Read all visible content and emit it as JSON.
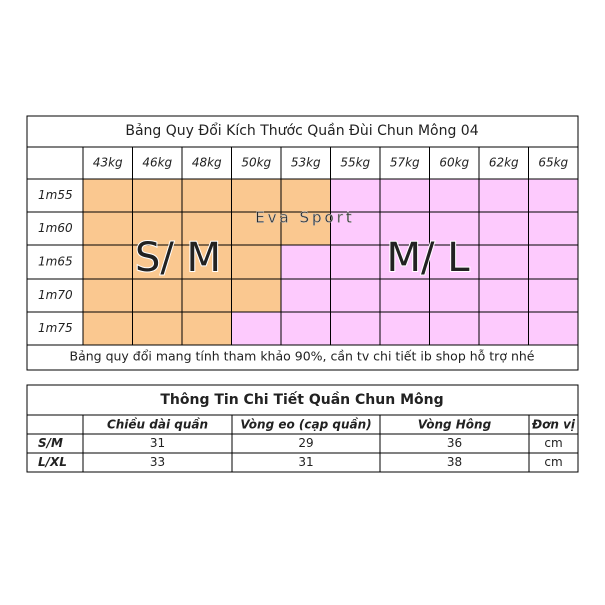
{
  "size_table": {
    "title": "Bảng Quy Đổi Kích Thước Quần Đùi Chun Mông 04",
    "weights": [
      "43kg",
      "46kg",
      "48kg",
      "50kg",
      "53kg",
      "55kg",
      "57kg",
      "60kg",
      "62kg",
      "65kg"
    ],
    "heights": [
      "1m55",
      "1m60",
      "1m65",
      "1m70",
      "1m75"
    ],
    "watermark": "Eva Sport",
    "zone_labels": [
      "S/ M",
      "M/ L"
    ],
    "note": "Bảng quy đổi mang tính tham khảo 90%, cần tv chi tiết ib shop hỗ trợ nhé"
  },
  "detail_table": {
    "title": "Thông Tin Chi Tiết Quần Chun Mông",
    "headers": [
      "Chiều dài quần",
      "Vòng eo (cạp quần)",
      "Vòng Hông",
      "Đơn vị"
    ],
    "rows": [
      [
        "S/M",
        "31",
        "29",
        "36",
        "cm"
      ],
      [
        "L/XL",
        "33",
        "31",
        "38",
        "cm"
      ]
    ]
  }
}
